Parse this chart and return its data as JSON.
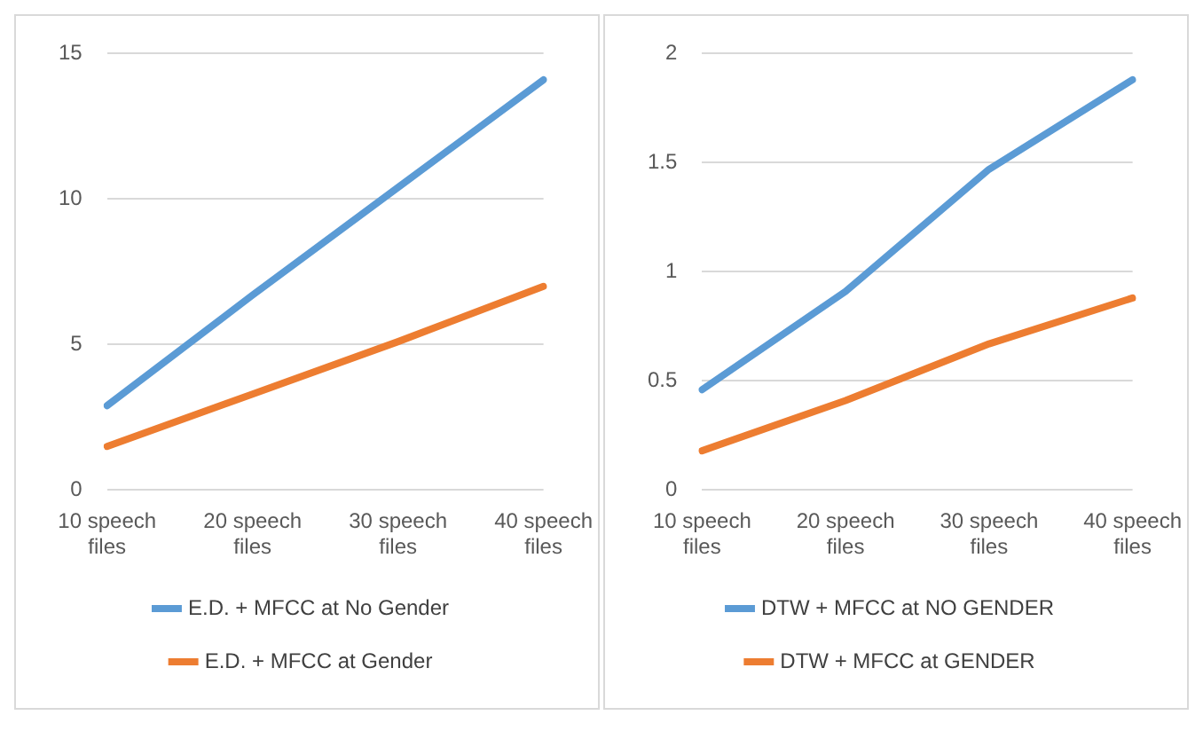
{
  "chart_data": [
    {
      "type": "line",
      "categories": [
        "10 speech files",
        "20 speech files",
        "30 speech files",
        "40 speech files"
      ],
      "series": [
        {
          "name": "E.D. + MFCC at No Gender",
          "color": "#5b9bd5",
          "values": [
            2.9,
            6.7,
            10.4,
            14.1
          ]
        },
        {
          "name": "E.D. + MFCC at Gender",
          "color": "#ed7d31",
          "values": [
            1.5,
            3.3,
            5.1,
            7.0
          ]
        }
      ],
      "ylim": [
        0,
        15
      ],
      "yticks": [
        0,
        5,
        10,
        15
      ],
      "grid": "y",
      "legend": "bottom",
      "marker": "none"
    },
    {
      "type": "line",
      "categories": [
        "10 speech files",
        "20 speech files",
        "30 speech files",
        "40 speech files"
      ],
      "series": [
        {
          "name": "DTW + MFCC at NO GENDER",
          "color": "#5b9bd5",
          "values": [
            0.46,
            0.91,
            1.47,
            1.88
          ]
        },
        {
          "name": "DTW + MFCC at GENDER",
          "color": "#ed7d31",
          "values": [
            0.18,
            0.41,
            0.67,
            0.88
          ]
        }
      ],
      "ylim": [
        0,
        2
      ],
      "yticks": [
        0,
        0.5,
        1,
        1.5,
        2
      ],
      "grid": "y",
      "legend": "bottom",
      "marker": "none"
    }
  ]
}
